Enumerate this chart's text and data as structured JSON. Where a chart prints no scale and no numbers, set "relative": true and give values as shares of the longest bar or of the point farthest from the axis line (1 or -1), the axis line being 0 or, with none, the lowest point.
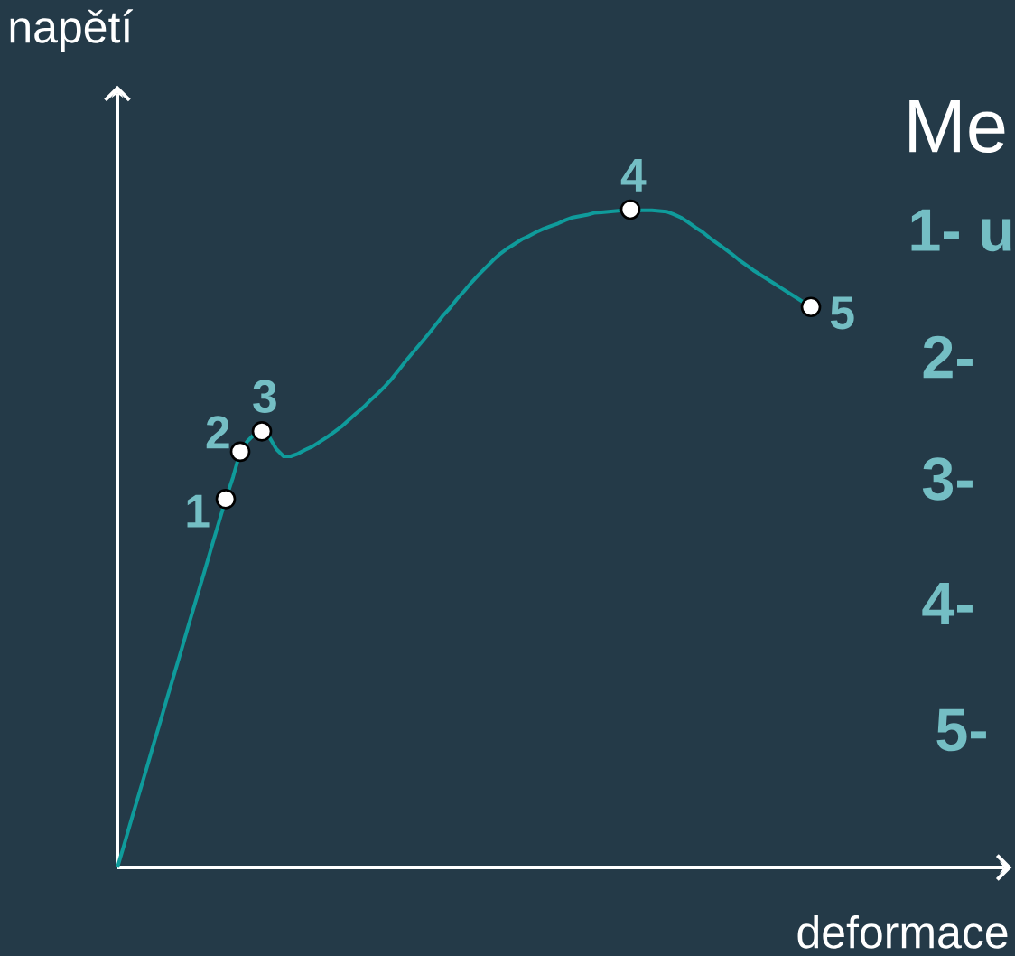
{
  "chart_data": {
    "type": "line",
    "relative": true,
    "xlabel": "deformace",
    "ylabel": "napětí",
    "categories": [
      null,
      null,
      null,
      null,
      null,
      null,
      null,
      null,
      null,
      null,
      null,
      null,
      null,
      null,
      null,
      null,
      null,
      null,
      null,
      null,
      null,
      null,
      null,
      null,
      null,
      null,
      null,
      null,
      null,
      null,
      null,
      null,
      null,
      null,
      null,
      null,
      null,
      null,
      null,
      null,
      null,
      null,
      null,
      null,
      null,
      null,
      null,
      null,
      null,
      null,
      null,
      null,
      null,
      null,
      null,
      null,
      null,
      null,
      null,
      null,
      null,
      null,
      null,
      null,
      null,
      null,
      null,
      null,
      null,
      null,
      null,
      null,
      null,
      null,
      null,
      null,
      null,
      null,
      null,
      null,
      null,
      null,
      null,
      null,
      null,
      null,
      null,
      null,
      null,
      null,
      null,
      null,
      null,
      null,
      null,
      null,
      null
    ],
    "series": [
      {
        "color": "#0f9b9b",
        "values": [
          0,
          0.037,
          0.075,
          0.112,
          0.149,
          0.187,
          0.224,
          0.262,
          0.299,
          0.336,
          0.374,
          0.411,
          0.448,
          0.486,
          0.523,
          0.56,
          0.593,
          0.632,
          0.648,
          0.659,
          0.663,
          0.655,
          0.636,
          0.625,
          0.625,
          0.629,
          0.635,
          0.64,
          0.647,
          0.654,
          0.662,
          0.67,
          0.68,
          0.69,
          0.699,
          0.71,
          0.72,
          0.731,
          0.743,
          0.757,
          0.771,
          0.784,
          0.797,
          0.81,
          0.824,
          0.838,
          0.85,
          0.864,
          0.876,
          0.889,
          0.901,
          0.912,
          0.923,
          0.933,
          0.941,
          0.948,
          0.955,
          0.96,
          0.966,
          0.971,
          0.975,
          0.979,
          0.984,
          0.988,
          0.99,
          0.992,
          0.995,
          0.996,
          0.997,
          0.998,
          0.999,
          1.0,
          0.999,
          0.999,
          0.999,
          0.998,
          0.997,
          0.993,
          0.988,
          0.981,
          0.973,
          0.966,
          0.957,
          0.949,
          0.941,
          0.933,
          0.924,
          0.916,
          0.908,
          0.901,
          0.894,
          0.887,
          0.88,
          0.873,
          0.866,
          0.859,
          0.852
        ]
      }
    ],
    "annotations": [
      "1",
      "2",
      "3",
      "4",
      "5",
      "Me",
      "1- u",
      "2-",
      "3-",
      "4-",
      "5-"
    ]
  }
}
